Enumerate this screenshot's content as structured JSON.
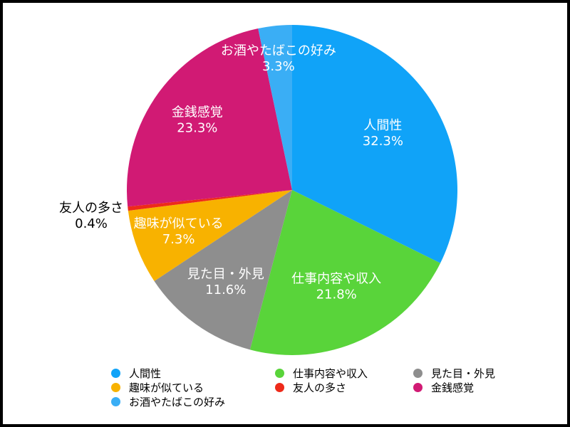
{
  "chart_data": {
    "type": "pie",
    "slices": [
      {
        "label": "人間性",
        "value": 32.3,
        "display": "32.3%",
        "color": "#10A3F8"
      },
      {
        "label": "仕事内容や収入",
        "value": 21.8,
        "display": "21.8%",
        "color": "#59D43A"
      },
      {
        "label": "見た目・外見",
        "value": 11.6,
        "display": "11.6%",
        "color": "#8E8E8E"
      },
      {
        "label": "趣味が似ている",
        "value": 7.3,
        "display": "7.3%",
        "color": "#F8B200"
      },
      {
        "label": "友人の多さ",
        "value": 0.4,
        "display": "0.4%",
        "color": "#EE2A1A"
      },
      {
        "label": "金銭感覚",
        "value": 23.3,
        "display": "23.3%",
        "color": "#D11A74"
      },
      {
        "label": "お酒やたばこの好み",
        "value": 3.3,
        "display": "3.3%",
        "color": "#3AAEF5"
      }
    ],
    "legend_position": "bottom",
    "start_angle": "top",
    "direction": "clockwise"
  }
}
